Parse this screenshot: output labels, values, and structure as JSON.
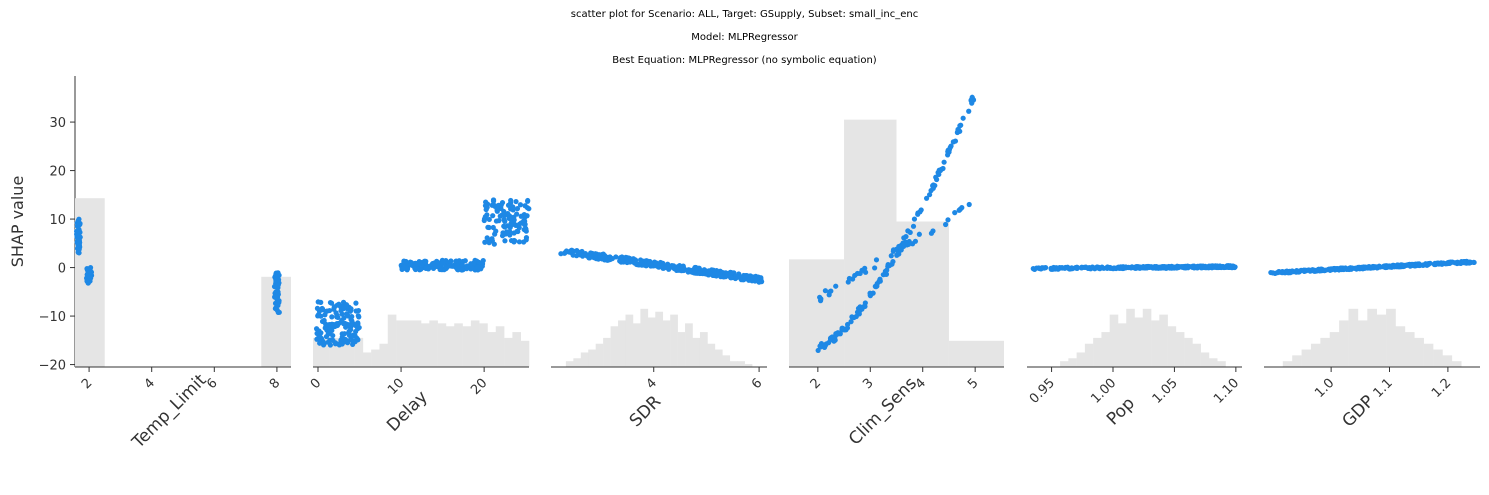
{
  "titles": {
    "line1": "scatter plot for Scenario: ALL, Target: GSupply, Subset: small_inc_enc",
    "line2": "Model: MLPRegressor",
    "line3": "Best Equation: MLPRegressor (no symbolic equation)"
  },
  "colors": {
    "points": "#1e88e5",
    "hist": "#e5e5e5",
    "axis": "#333333"
  },
  "chart_data": {
    "type": "scatter",
    "ylabel": "SHAP value",
    "ylim": [
      -20.5,
      39.5
    ],
    "yticks": [
      -20,
      -10,
      0,
      10,
      20,
      30
    ],
    "ytick_labels": [
      "−20",
      "−10",
      "0",
      "10",
      "20",
      "30"
    ],
    "panels": [
      {
        "xlabel": "Temp_Limit",
        "xlim": [
          1.55,
          8.45
        ],
        "xticks": [
          2,
          4,
          6,
          8
        ],
        "xtick_labels": [
          "2",
          "4",
          "6",
          "8"
        ],
        "hist": [
          {
            "x0": 1.55,
            "x1": 2.5,
            "h": 0.58
          },
          {
            "x0": 7.5,
            "x1": 8.45,
            "h": 0.31
          }
        ],
        "clusters": [
          {
            "x": [
              1.6,
              1.72
            ],
            "y": [
              3,
              10
            ],
            "n": 45
          },
          {
            "x": [
              1.92,
              2.08
            ],
            "y": [
              -3.2,
              0
            ],
            "n": 40
          },
          {
            "x": [
              7.92,
              8.08
            ],
            "y": [
              -9.5,
              -1
            ],
            "n": 45
          }
        ]
      },
      {
        "xlabel": "Delay",
        "xlim": [
          -0.6,
          25.4
        ],
        "xticks": [
          0,
          10,
          20
        ],
        "xtick_labels": [
          "0",
          "10",
          "20"
        ],
        "hist_profile": {
          "range": [
            -0.6,
            25.4
          ],
          "heights": [
            0.1,
            0.1,
            0.1,
            0.1,
            0.1,
            0.1,
            0.05,
            0.06,
            0.08,
            0.18,
            0.16,
            0.16,
            0.16,
            0.15,
            0.16,
            0.15,
            0.14,
            0.15,
            0.14,
            0.16,
            0.15,
            0.12,
            0.14,
            0.1,
            0.12,
            0.09
          ]
        },
        "clusters": [
          {
            "x": [
              -0.2,
              5
            ],
            "y": [
              -16,
              -7
            ],
            "n": 140
          },
          {
            "x": [
              10,
              20
            ],
            "y": [
              -0.5,
              1.5
            ],
            "n": 170
          },
          {
            "x": [
              20,
              25.4
            ],
            "y": [
              4.8,
              14.2
            ],
            "n": 110
          }
        ]
      },
      {
        "xlabel": "SDR",
        "xlim": [
          2.05,
          6.15
        ],
        "xticks": [
          4,
          6
        ],
        "xtick_labels": [
          "4",
          "6"
        ],
        "hist_profile": {
          "range": [
            2.05,
            6.15
          ],
          "heights": [
            0,
            0,
            0.02,
            0.03,
            0.05,
            0.06,
            0.08,
            0.1,
            0.14,
            0.16,
            0.18,
            0.15,
            0.2,
            0.17,
            0.19,
            0.16,
            0.18,
            0.12,
            0.15,
            0.1,
            0.12,
            0.08,
            0.06,
            0.04,
            0.02,
            0.02,
            0.01,
            0,
            0
          ]
        },
        "line_trend": {
          "x0": 2.2,
          "y0": 3.5,
          "x1": 6.05,
          "y1": -2.5,
          "noise": 1.2,
          "n": 320
        }
      },
      {
        "xlabel": "Clim_Sens",
        "xlim": [
          1.45,
          5.55
        ],
        "xticks": [
          2,
          3,
          4,
          5
        ],
        "xtick_labels": [
          "2",
          "3",
          "4",
          "5"
        ],
        "hist": [
          {
            "x0": 1.45,
            "x1": 2.5,
            "h": 0.37
          },
          {
            "x0": 2.5,
            "x1": 3.5,
            "h": 0.85
          },
          {
            "x0": 3.5,
            "x1": 4.5,
            "h": 0.5
          },
          {
            "x0": 4.5,
            "x1": 5.55,
            "h": 0.09
          }
        ],
        "branches": [
          {
            "x": [
              2.0,
              4.95
            ],
            "y": [
              -6.5,
              13
            ],
            "curve": "linear",
            "n": 45
          },
          {
            "x": [
              2.0,
              5.0
            ],
            "y": [
              -16.5,
              36
            ],
            "curve": "convex",
            "n": 130
          }
        ]
      },
      {
        "xlabel": "Pop",
        "xlim": [
          0.93,
          1.105
        ],
        "xticks": [
          0.95,
          1.0,
          1.05,
          1.1
        ],
        "xtick_labels": [
          "0.95",
          "1.00",
          "1.05",
          "1.10"
        ],
        "hist_profile": {
          "range": [
            0.93,
            1.105
          ],
          "heights": [
            0,
            0,
            0,
            0,
            0.02,
            0.03,
            0.05,
            0.08,
            0.1,
            0.12,
            0.18,
            0.15,
            0.2,
            0.17,
            0.2,
            0.16,
            0.18,
            0.14,
            0.12,
            0.1,
            0.08,
            0.05,
            0.03,
            0.02,
            0,
            0
          ]
        },
        "line_trend": {
          "x0": 0.935,
          "y0": -0.2,
          "x1": 1.1,
          "y1": 0.2,
          "noise": 0.4,
          "n": 300
        }
      },
      {
        "xlabel": "GDP",
        "xlim": [
          0.885,
          1.255
        ],
        "xticks": [
          1.0,
          1.1,
          1.2
        ],
        "xtick_labels": [
          "1.0",
          "1.1",
          "1.2"
        ],
        "hist_profile": {
          "range": [
            0.885,
            1.255
          ],
          "heights": [
            0,
            0,
            0.02,
            0.04,
            0.06,
            0.08,
            0.1,
            0.12,
            0.16,
            0.2,
            0.16,
            0.2,
            0.18,
            0.2,
            0.14,
            0.12,
            0.1,
            0.08,
            0.06,
            0.04,
            0.02,
            0,
            0
          ]
        },
        "line_trend": {
          "x0": 0.895,
          "y0": -1.1,
          "x1": 1.245,
          "y1": 1.2,
          "noise": 0.4,
          "n": 300
        }
      }
    ]
  }
}
